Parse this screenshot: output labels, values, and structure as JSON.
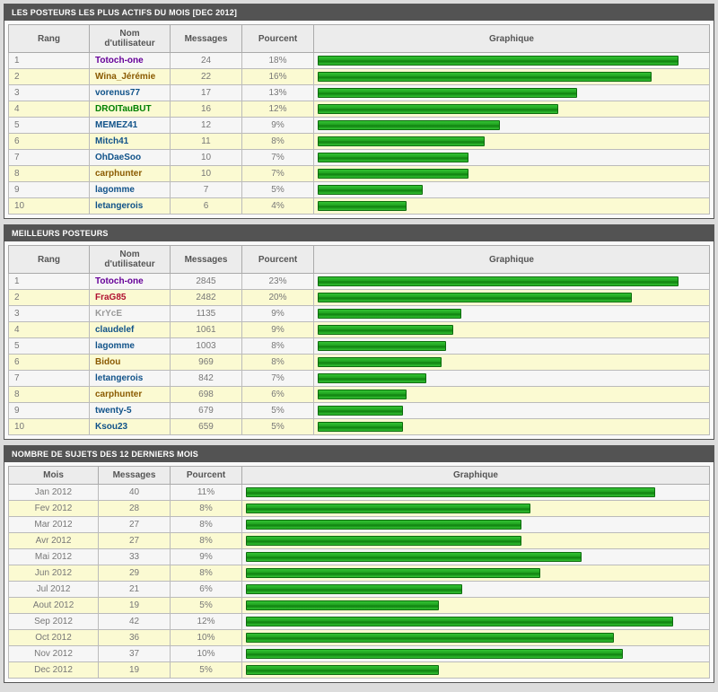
{
  "colors": {
    "panel_header_bg": "#535353",
    "panel_header_fg": "#ffffff",
    "row_odd_bg": "#f6f6f6",
    "row_even_bg": "#fbfad2",
    "bar_color": "#1fa11f",
    "user_colors": {
      "default": "#105289",
      "totoch": "#660099",
      "wina": "#8a5a00",
      "green": "#008000",
      "frag": "#b01030",
      "kryce": "#999999",
      "bidou": "#8a5a00",
      "carph": "#8a5a00"
    }
  },
  "headers": {
    "rang": "Rang",
    "user": "Nom d'utilisateur",
    "messages": "Messages",
    "pourcent": "Pourcent",
    "graphique": "Graphique",
    "mois": "Mois"
  },
  "section1": {
    "title": "LES POSTEURS LES PLUS ACTIFS DU MOIS [DEC 2012]",
    "max_bar_pct": 93,
    "rows": [
      {
        "rang": "1",
        "user": "Totoch-one",
        "color": "totoch",
        "messages": "24",
        "pct": "18%",
        "bar": 93
      },
      {
        "rang": "2",
        "user": "Wina_Jérémie",
        "color": "wina",
        "messages": "22",
        "pct": "16%",
        "bar": 86
      },
      {
        "rang": "3",
        "user": "vorenus77",
        "color": "default",
        "messages": "17",
        "pct": "13%",
        "bar": 67
      },
      {
        "rang": "4",
        "user": "DROITauBUT",
        "color": "green",
        "messages": "16",
        "pct": "12%",
        "bar": 62
      },
      {
        "rang": "5",
        "user": "MEMEZ41",
        "color": "default",
        "messages": "12",
        "pct": "9%",
        "bar": 47
      },
      {
        "rang": "6",
        "user": "Mitch41",
        "color": "default",
        "messages": "11",
        "pct": "8%",
        "bar": 43
      },
      {
        "rang": "7",
        "user": "OhDaeSoo",
        "color": "default",
        "messages": "10",
        "pct": "7%",
        "bar": 39
      },
      {
        "rang": "8",
        "user": "carphunter",
        "color": "carph",
        "messages": "10",
        "pct": "7%",
        "bar": 39
      },
      {
        "rang": "9",
        "user": "lagomme",
        "color": "default",
        "messages": "7",
        "pct": "5%",
        "bar": 27
      },
      {
        "rang": "10",
        "user": "letangerois",
        "color": "default",
        "messages": "6",
        "pct": "4%",
        "bar": 23
      }
    ]
  },
  "section2": {
    "title": "MEILLEURS POSTEURS",
    "max_bar_pct": 93,
    "rows": [
      {
        "rang": "1",
        "user": "Totoch-one",
        "color": "totoch",
        "messages": "2845",
        "pct": "23%",
        "bar": 93
      },
      {
        "rang": "2",
        "user": "FraG85",
        "color": "frag",
        "messages": "2482",
        "pct": "20%",
        "bar": 81
      },
      {
        "rang": "3",
        "user": "KrYcE",
        "color": "kryce",
        "messages": "1135",
        "pct": "9%",
        "bar": 37
      },
      {
        "rang": "4",
        "user": "claudelef",
        "color": "default",
        "messages": "1061",
        "pct": "9%",
        "bar": 35
      },
      {
        "rang": "5",
        "user": "lagomme",
        "color": "default",
        "messages": "1003",
        "pct": "8%",
        "bar": 33
      },
      {
        "rang": "6",
        "user": "Bidou",
        "color": "bidou",
        "messages": "969",
        "pct": "8%",
        "bar": 32
      },
      {
        "rang": "7",
        "user": "letangerois",
        "color": "default",
        "messages": "842",
        "pct": "7%",
        "bar": 28
      },
      {
        "rang": "8",
        "user": "carphunter",
        "color": "carph",
        "messages": "698",
        "pct": "6%",
        "bar": 23
      },
      {
        "rang": "9",
        "user": "twenty-5",
        "color": "default",
        "messages": "679",
        "pct": "5%",
        "bar": 22
      },
      {
        "rang": "10",
        "user": "Ksou23",
        "color": "default",
        "messages": "659",
        "pct": "5%",
        "bar": 22
      }
    ]
  },
  "section3": {
    "title": "NOMBRE DE SUJETS DES 12 DERNIERS MOIS",
    "max_bar_pct": 93,
    "rows": [
      {
        "mois": "Jan 2012",
        "messages": "40",
        "pct": "11%",
        "bar": 89
      },
      {
        "mois": "Fev 2012",
        "messages": "28",
        "pct": "8%",
        "bar": 62
      },
      {
        "mois": "Mar 2012",
        "messages": "27",
        "pct": "8%",
        "bar": 60
      },
      {
        "mois": "Avr 2012",
        "messages": "27",
        "pct": "8%",
        "bar": 60
      },
      {
        "mois": "Mai 2012",
        "messages": "33",
        "pct": "9%",
        "bar": 73
      },
      {
        "mois": "Jun 2012",
        "messages": "29",
        "pct": "8%",
        "bar": 64
      },
      {
        "mois": "Jul 2012",
        "messages": "21",
        "pct": "6%",
        "bar": 47
      },
      {
        "mois": "Aout 2012",
        "messages": "19",
        "pct": "5%",
        "bar": 42
      },
      {
        "mois": "Sep 2012",
        "messages": "42",
        "pct": "12%",
        "bar": 93
      },
      {
        "mois": "Oct 2012",
        "messages": "36",
        "pct": "10%",
        "bar": 80
      },
      {
        "mois": "Nov 2012",
        "messages": "37",
        "pct": "10%",
        "bar": 82
      },
      {
        "mois": "Dec 2012",
        "messages": "19",
        "pct": "5%",
        "bar": 42
      }
    ]
  }
}
